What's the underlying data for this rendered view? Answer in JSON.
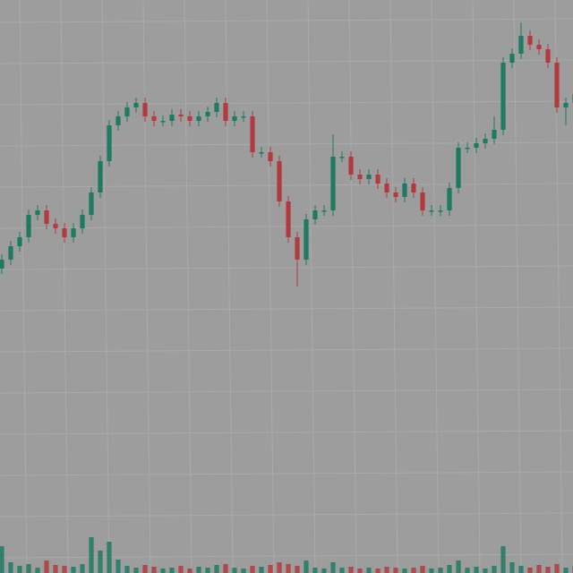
{
  "chart_data": {
    "type": "candlestick",
    "categories": [
      null,
      null,
      null,
      null,
      null,
      null,
      null,
      null,
      null,
      null,
      null,
      null,
      null,
      null,
      null,
      null,
      null,
      null,
      null,
      null,
      null,
      null,
      null,
      null,
      null,
      null,
      null,
      null,
      null,
      null,
      null,
      null,
      null,
      null,
      null,
      null,
      null,
      null,
      null,
      null,
      null,
      null,
      null,
      null,
      null,
      null,
      null,
      null,
      null,
      null,
      null,
      null,
      null,
      null,
      null,
      null,
      null,
      null,
      null,
      null,
      null,
      null,
      null,
      null,
      null
    ],
    "open": [
      340,
      350,
      365,
      375,
      400,
      405,
      390,
      385,
      375,
      385,
      400,
      425,
      460,
      500,
      510,
      520,
      525,
      510,
      505,
      505,
      512,
      510,
      505,
      510,
      515,
      525,
      505,
      510,
      510,
      470,
      470,
      460,
      415,
      375,
      350,
      395,
      405,
      405,
      465,
      465,
      445,
      440,
      445,
      435,
      425,
      420,
      435,
      425,
      405,
      405,
      405,
      430,
      475,
      475,
      480,
      485,
      495,
      570,
      580,
      600,
      590,
      585,
      570,
      520,
      525
    ],
    "high": [
      356,
      371,
      381,
      406,
      411,
      411,
      396,
      391,
      391,
      406,
      431,
      466,
      506,
      516,
      526,
      531,
      531,
      516,
      511,
      518,
      518,
      516,
      516,
      521,
      531,
      531,
      516,
      516,
      516,
      476,
      476,
      466,
      421,
      381,
      401,
      411,
      411,
      490,
      471,
      471,
      451,
      451,
      451,
      441,
      431,
      441,
      441,
      431,
      411,
      411,
      436,
      481,
      481,
      486,
      491,
      510,
      576,
      586,
      615,
      606,
      596,
      591,
      576,
      531,
      541
    ],
    "low": [
      334,
      344,
      359,
      369,
      394,
      384,
      379,
      369,
      369,
      379,
      394,
      419,
      454,
      494,
      504,
      514,
      504,
      499,
      499,
      499,
      504,
      499,
      499,
      504,
      509,
      499,
      499,
      504,
      464,
      464,
      454,
      409,
      369,
      320,
      344,
      389,
      399,
      399,
      459,
      439,
      434,
      434,
      429,
      419,
      414,
      414,
      419,
      399,
      399,
      399,
      399,
      424,
      469,
      469,
      474,
      479,
      489,
      564,
      574,
      584,
      579,
      564,
      514,
      500,
      519
    ],
    "close": [
      350,
      365,
      375,
      400,
      405,
      390,
      385,
      375,
      385,
      400,
      425,
      460,
      500,
      510,
      520,
      525,
      510,
      505,
      505,
      512,
      510,
      505,
      510,
      515,
      525,
      505,
      510,
      510,
      470,
      470,
      460,
      415,
      375,
      350,
      395,
      405,
      405,
      465,
      465,
      445,
      440,
      445,
      435,
      425,
      420,
      435,
      425,
      405,
      405,
      405,
      430,
      475,
      475,
      480,
      485,
      495,
      570,
      580,
      600,
      590,
      585,
      570,
      520,
      525,
      535
    ],
    "volume": [
      30,
      12,
      8,
      10,
      6,
      14,
      9,
      8,
      7,
      10,
      40,
      25,
      35,
      15,
      8,
      6,
      9,
      7,
      5,
      6,
      8,
      5,
      7,
      6,
      9,
      10,
      6,
      5,
      8,
      7,
      9,
      12,
      10,
      8,
      14,
      6,
      5,
      12,
      6,
      7,
      5,
      6,
      5,
      7,
      6,
      5,
      6,
      8,
      5,
      6,
      9,
      14,
      6,
      7,
      5,
      8,
      30,
      12,
      8,
      6,
      9,
      7,
      10,
      6,
      8
    ],
    "up_color": "#1f7a64",
    "down_color": "#b23b3f",
    "ylim": [
      0,
      640
    ],
    "volume_lim": [
      0,
      100
    ],
    "grid": true
  }
}
